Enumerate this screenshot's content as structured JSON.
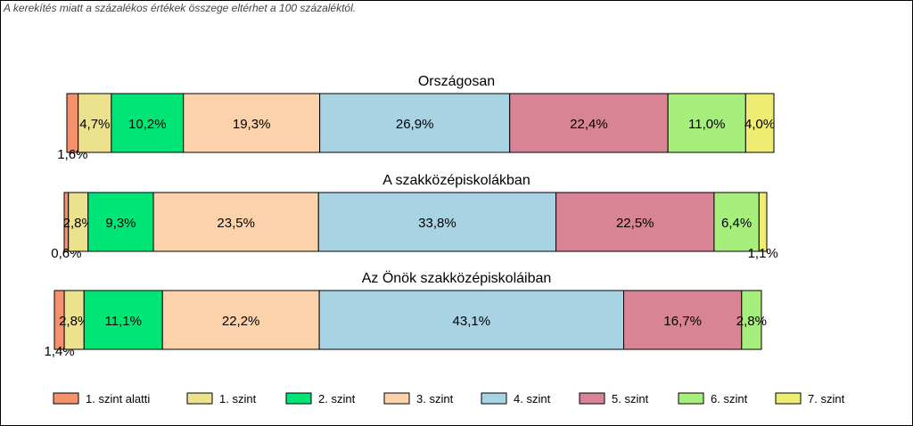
{
  "note": "A kerekítés miatt a  százalékos értékek összege eltérhet a 100 százaléktól.",
  "chart_data": {
    "type": "bar",
    "orientation": "horizontal",
    "stacked": "100%",
    "legend_position": "bottom",
    "rows": [
      {
        "title": "Országosan",
        "values": [
          1.6,
          4.7,
          10.2,
          19.3,
          26.9,
          22.4,
          11.0,
          4.0
        ],
        "labels": [
          "1,6%",
          "4,7%",
          "10,2%",
          "19,3%",
          "26,9%",
          "22,4%",
          "11,0%",
          "4,0%"
        ]
      },
      {
        "title": "A szakközépiskolákban",
        "values": [
          0.6,
          2.8,
          9.3,
          23.5,
          33.8,
          22.5,
          6.4,
          1.1
        ],
        "labels": [
          "0,6%",
          "2,8%",
          "9,3%",
          "23,5%",
          "33,8%",
          "22,5%",
          "6,4%",
          "1,1%"
        ]
      },
      {
        "title": "Az Önök szakközépiskoláiban",
        "values": [
          1.4,
          2.8,
          11.1,
          22.2,
          43.1,
          16.7,
          2.8,
          0
        ],
        "labels": [
          "1,4%",
          "2,8%",
          "11,1%",
          "22,2%",
          "43,1%",
          "16,7%",
          "2,8%",
          ""
        ]
      }
    ],
    "series": [
      {
        "name": "1. szint alatti",
        "color": "#f4926e"
      },
      {
        "name": "1. szint",
        "color": "#ece28d"
      },
      {
        "name": "2. szint",
        "color": "#00e676"
      },
      {
        "name": "3. szint",
        "color": "#fbd2aa"
      },
      {
        "name": "4. szint",
        "color": "#a7d3e3"
      },
      {
        "name": "5. szint",
        "color": "#d88495"
      },
      {
        "name": "6. szint",
        "color": "#a7ef7d"
      },
      {
        "name": "7. szint",
        "color": "#eeec73"
      }
    ]
  }
}
